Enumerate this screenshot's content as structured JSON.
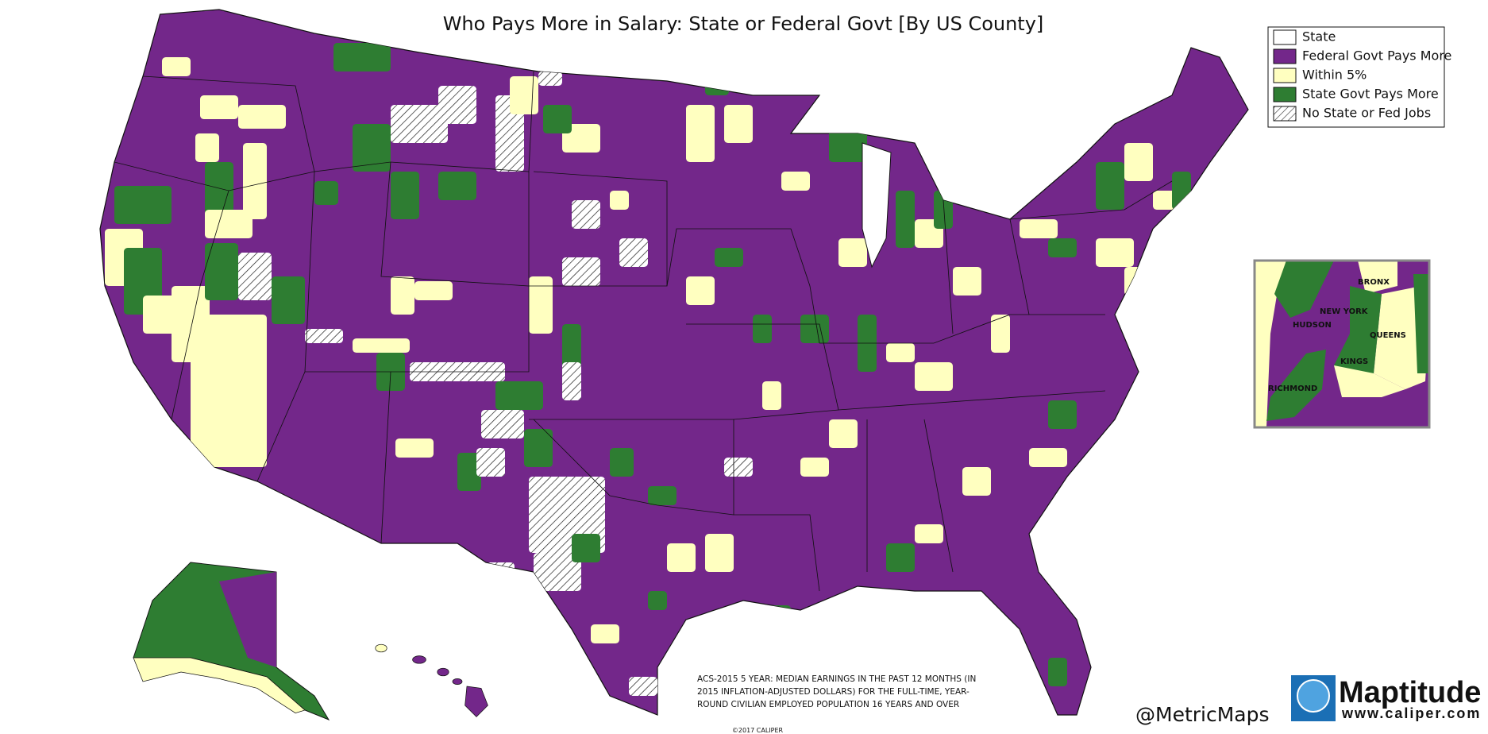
{
  "header": {
    "title": "Who Pays More in Salary:  State or Federal Govt [By US County]"
  },
  "legend": {
    "items": [
      "State",
      "Federal Govt Pays More",
      "Within 5%",
      "State Govt Pays More",
      "No State or Fed Jobs"
    ]
  },
  "inset": {
    "labels": [
      "BRONX",
      "NEW YORK",
      "HUDSON",
      "QUEENS",
      "KINGS",
      "RICHMOND"
    ]
  },
  "note": {
    "lines": [
      "ACS-2015 5 YEAR: MEDIAN EARNINGS IN THE PAST 12 MONTHS (IN",
      "2015 INFLATION-ADJUSTED DOLLARS) FOR THE FULL-TIME, YEAR-",
      "ROUND CIVILIAN EMPLOYED POPULATION 16 YEARS AND OVER"
    ]
  },
  "footer": {
    "handle": "@MetricMaps",
    "logo": "Maptitude",
    "url": "www.caliper.com",
    "copyright": "©2017 CALIPER"
  }
}
